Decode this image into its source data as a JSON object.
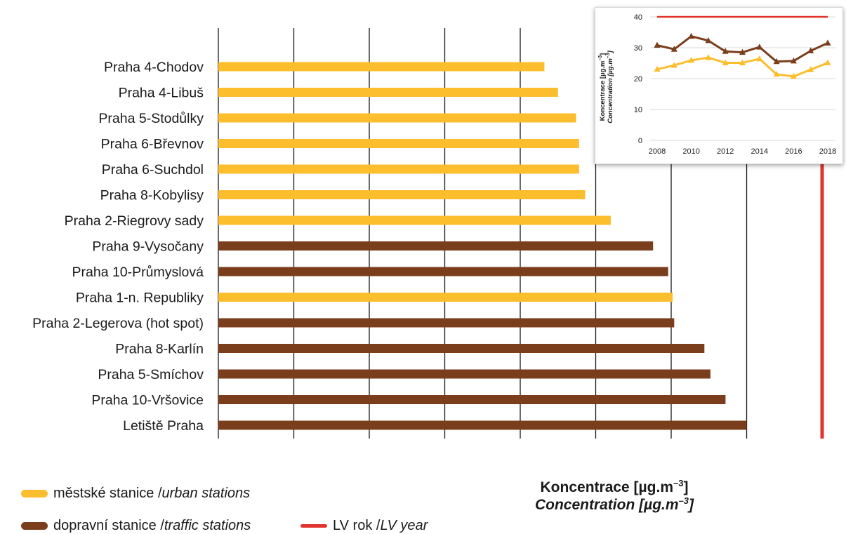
{
  "colors": {
    "urban": "#FDBE2E",
    "traffic": "#7B3E1C",
    "limit": "#E2332D",
    "grid": "#1a1a1a",
    "inset_grid": "#d9d9d9"
  },
  "chart_data": [
    {
      "type": "bar",
      "orientation": "horizontal",
      "categories": [
        "Praha 4-Chodov",
        "Praha 4-Libuš",
        "Praha 5-Stodůlky",
        "Praha 6-Břevnov",
        "Praha 6-Suchdol",
        "Praha 8-Kobylisy",
        "Praha 2-Riegrovy sady",
        "Praha 9-Vysočany",
        "Praha 10-Průmyslová",
        "Praha 1-n. Republiky",
        "Praha 2-Legerova (hot spot)",
        "Praha 8-Karlín",
        "Praha 5-Smíchov",
        "Praha 10-Vršovice",
        "Letiště Praha"
      ],
      "values": [
        21.6,
        22.5,
        23.7,
        23.9,
        23.9,
        24.3,
        26.0,
        28.8,
        29.8,
        30.1,
        30.2,
        32.2,
        32.6,
        33.6,
        35.0
      ],
      "station_type": [
        "urban",
        "urban",
        "urban",
        "urban",
        "urban",
        "urban",
        "urban",
        "traffic",
        "traffic",
        "urban",
        "traffic",
        "traffic",
        "traffic",
        "traffic",
        "traffic"
      ],
      "xlim": [
        0,
        40
      ],
      "xticks": [
        "0.0",
        "5.0",
        "10.0",
        "15.0",
        "20.0",
        "25.0",
        "30.0",
        "35.0",
        "40.0"
      ],
      "xtick_values": [
        0,
        5,
        10,
        15,
        20,
        25,
        30,
        35,
        40
      ],
      "limit_value": 40,
      "xlabel": "Koncentrace [µg.m",
      "xlabel_italic": "Concentration [µg.m",
      "xlabel_sup": "–3",
      "xlabel_end": "]",
      "legend": {
        "urban_label": "městské stanice / ",
        "urban_label_italic": "urban stations",
        "traffic_label": "dopravní stanice / ",
        "traffic_label_italic": "traffic stations",
        "limit_label": "LV rok / ",
        "limit_label_italic": "LV year"
      },
      "grid": true
    },
    {
      "type": "line",
      "x": [
        2008,
        2009,
        2010,
        2011,
        2012,
        2013,
        2014,
        2015,
        2016,
        2017,
        2018
      ],
      "series": [
        {
          "key": "traffic",
          "values": [
            30.8,
            29.5,
            33.7,
            32.3,
            28.8,
            28.5,
            30.2,
            25.5,
            25.7,
            29.0,
            31.5
          ]
        },
        {
          "key": "urban",
          "values": [
            23.0,
            24.3,
            25.9,
            26.8,
            25.1,
            25.1,
            26.4,
            21.4,
            20.7,
            22.9,
            25.1
          ]
        },
        {
          "key": "limit",
          "values": [
            40,
            40,
            40,
            40,
            40,
            40,
            40,
            40,
            40,
            40,
            40
          ]
        }
      ],
      "xticks": [
        "2008",
        "2010",
        "2012",
        "2014",
        "2016",
        "2018"
      ],
      "xtick_values": [
        2008,
        2010,
        2012,
        2014,
        2016,
        2018
      ],
      "yticks": [
        "0",
        "10",
        "20",
        "30",
        "40"
      ],
      "ytick_values": [
        0,
        10,
        20,
        30,
        40
      ],
      "ylim": [
        0,
        40
      ],
      "xlim": [
        2008,
        2018
      ],
      "ylabel": "Koncentrace [µg.m",
      "ylabel_italic": "Concentration [µg.m",
      "ylabel_sup": "–3",
      "ylabel_end": "]",
      "grid": true
    }
  ]
}
